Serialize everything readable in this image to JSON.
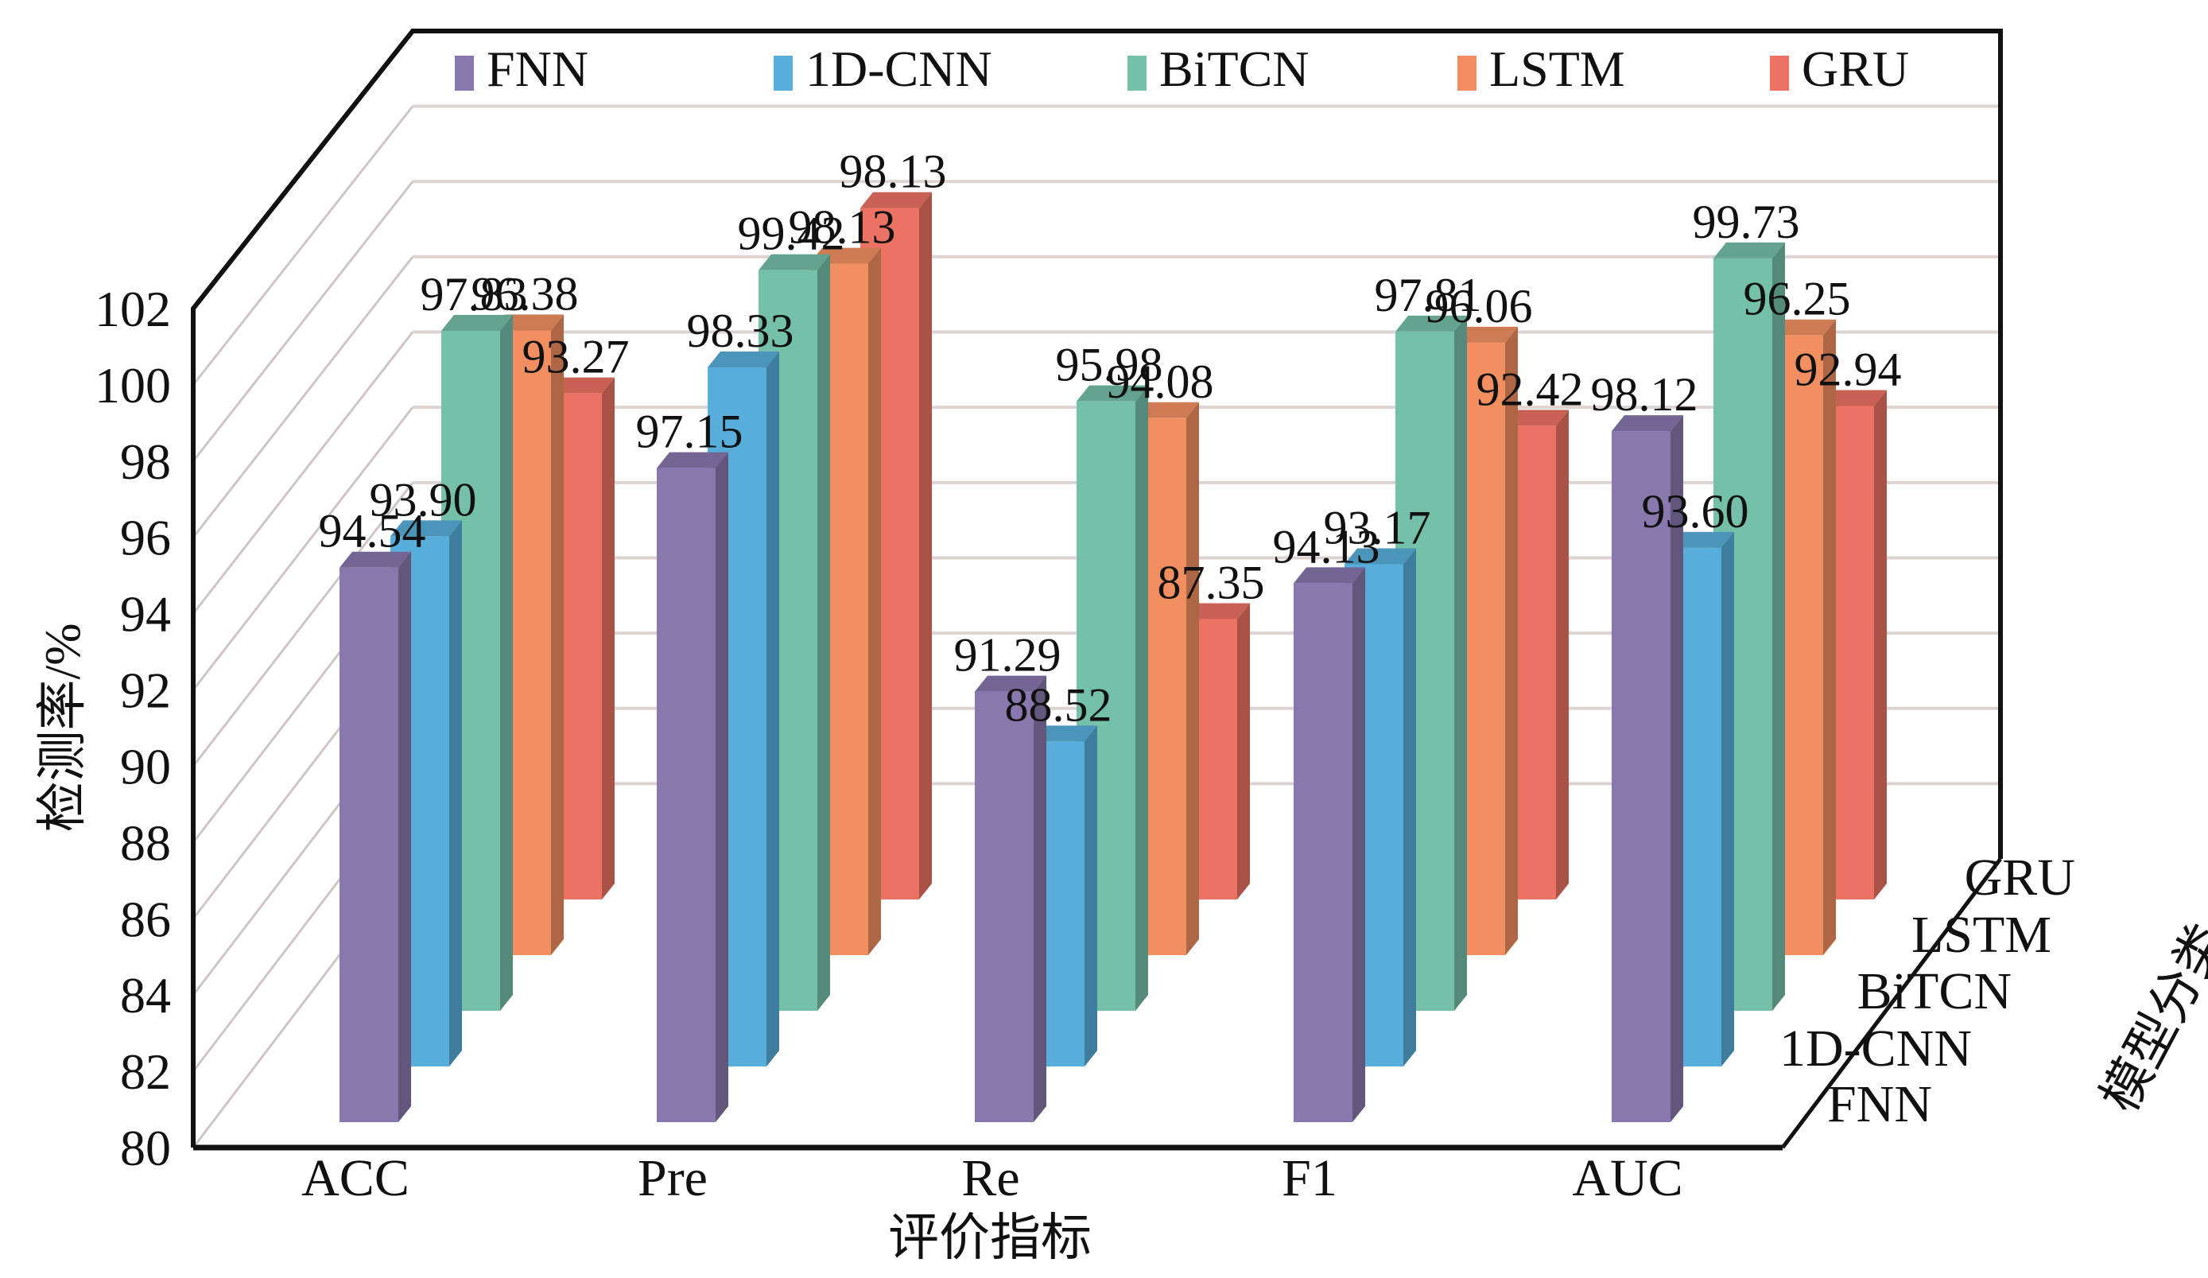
{
  "chart_data": {
    "type": "bar",
    "variant": "3d-clustered-column",
    "title": "",
    "xlabel": "评价指标",
    "ylabel": "检测率/%",
    "zlabel": "模型分类",
    "categories": [
      "ACC",
      "Pre",
      "Re",
      "F1",
      "AUC"
    ],
    "series": [
      {
        "name": "FNN",
        "color": "#8878ae",
        "values": [
          94.54,
          97.15,
          91.29,
          94.13,
          98.12
        ]
      },
      {
        "name": "1D-CNN",
        "color": "#58aedb",
        "values": [
          93.9,
          98.33,
          88.52,
          93.17,
          93.6
        ]
      },
      {
        "name": "BiTCN",
        "color": "#74c0a8",
        "values": [
          97.83,
          99.42,
          95.98,
          97.81,
          99.73
        ]
      },
      {
        "name": "LSTM",
        "color": "#f28f60",
        "values": [
          96.38,
          98.13,
          94.08,
          96.06,
          96.25
        ]
      },
      {
        "name": "GRU",
        "color": "#ec7264",
        "values": [
          93.27,
          98.13,
          87.35,
          92.42,
          92.94
        ]
      }
    ],
    "ylim": [
      80,
      102
    ],
    "yticks": [
      "80",
      "82",
      "84",
      "86",
      "88",
      "90",
      "92",
      "94",
      "96",
      "98",
      "100",
      "102"
    ],
    "depth_labels": [
      "FNN",
      "1D-CNN",
      "BiTCN",
      "LSTM",
      "GRU"
    ],
    "data_labels": [
      [
        "94.54",
        "97.15",
        "91.29",
        "94.13",
        "98.12"
      ],
      [
        "93.90",
        "98.33",
        "88.52",
        "93.17",
        "93.60"
      ],
      [
        "97.83",
        "99.42",
        "95.98",
        "97.81",
        "99.73"
      ],
      [
        "96.38",
        "98.13",
        "94.08",
        "96.06",
        "96.25"
      ],
      [
        "93.27",
        "98.13",
        "87.35",
        "92.42",
        "92.94"
      ]
    ],
    "grid": true,
    "legend_position": "top"
  }
}
